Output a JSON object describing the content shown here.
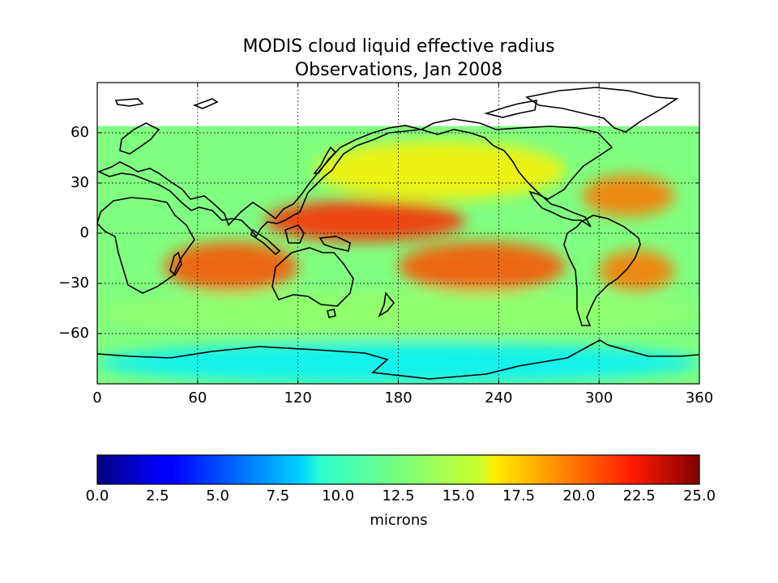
{
  "chart_data": {
    "type": "heatmap",
    "title": "MODIS cloud liquid effective radius",
    "subtitle": "Observations, Jan 2008",
    "x_ticks": [
      0,
      60,
      120,
      180,
      240,
      300,
      360
    ],
    "y_ticks": [
      60,
      30,
      0,
      -30,
      -60
    ],
    "x_tick_labels": [
      "0",
      "60",
      "120",
      "180",
      "240",
      "300",
      "360"
    ],
    "y_tick_labels": [
      "60",
      "30",
      "0",
      "−30",
      "−60"
    ],
    "xlim": [
      0,
      360
    ],
    "ylim": [
      -90,
      90
    ],
    "grid": true,
    "colormap": "jet",
    "colorbar": {
      "range": [
        0.0,
        25.0
      ],
      "ticks": [
        "0.0",
        "2.5",
        "5.0",
        "7.5",
        "10.0",
        "12.5",
        "15.0",
        "17.5",
        "20.0",
        "22.5",
        "25.0"
      ],
      "label": "microns",
      "orientation": "horizontal"
    },
    "data_coverage_lat": [
      -90,
      64
    ],
    "regions": [
      {
        "lon": [
          100,
          220
        ],
        "lat": [
          -5,
          20
        ],
        "value": 21
      },
      {
        "lon": [
          180,
          280
        ],
        "lat": [
          -35,
          -5
        ],
        "value": 20
      },
      {
        "lon": [
          40,
          120
        ],
        "lat": [
          -35,
          -5
        ],
        "value": 20
      },
      {
        "lon": [
          290,
          345
        ],
        "lat": [
          10,
          35
        ],
        "value": 19
      },
      {
        "lon": [
          300,
          345
        ],
        "lat": [
          -35,
          -10
        ],
        "value": 19
      },
      {
        "lon": [
          130,
          280
        ],
        "lat": [
          20,
          55
        ],
        "value": 16
      },
      {
        "lon": [
          0,
          360
        ],
        "lat": [
          -60,
          -35
        ],
        "value": 13
      },
      {
        "lon": [
          0,
          360
        ],
        "lat": [
          -90,
          -65
        ],
        "value": 9
      }
    ]
  }
}
